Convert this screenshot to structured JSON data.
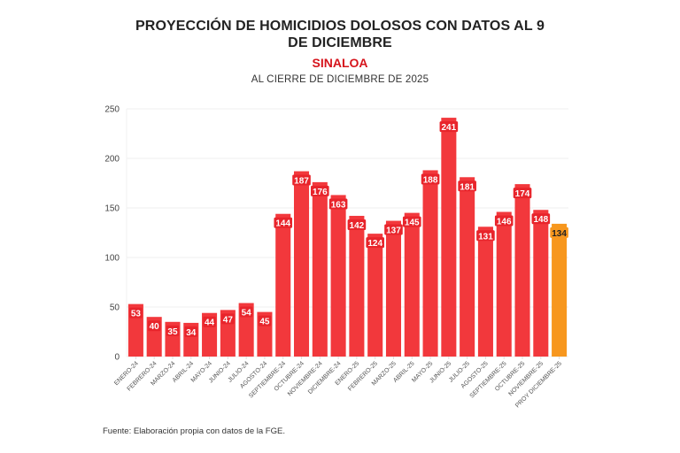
{
  "header": {
    "title": "PROYECCIÓN DE HOMICIDIOS DOLOSOS CON DATOS AL 9 DE DICIEMBRE",
    "subtitle": "SINALOA",
    "subsubtitle": "AL CIERRE DE DICIEMBRE DE 2025"
  },
  "footer": {
    "source": "Fuente: Elaboración propia con datos de la FGE."
  },
  "colors": {
    "bar": "#F2383C",
    "projection_bar": "#F7971E",
    "label_bg": "#E8242B",
    "label_text": "#ffffff",
    "projection_label_text": "#222222",
    "subtitle": "#D6141C"
  },
  "chart_data": {
    "type": "bar",
    "title": "PROYECCIÓN DE HOMICIDIOS DOLOSOS CON DATOS AL 9 DE DICIEMBRE",
    "subtitle": "SINALOA — AL CIERRE DE DICIEMBRE DE 2025",
    "xlabel": "",
    "ylabel": "",
    "ylim": [
      0,
      250
    ],
    "yticks": [
      0,
      50,
      100,
      150,
      200,
      250
    ],
    "grid": true,
    "legend": "none",
    "categories": [
      "ENERO-24",
      "FEBRERO-24",
      "MARZO-24",
      "ABRIL-24",
      "MAYO-24",
      "JUNIO-24",
      "JULIO-24",
      "AGOSTO-24",
      "SEPTIEMBRE-24",
      "OCTUBRE-24",
      "NOVIEMBRE-24",
      "DICIEMBRE-24",
      "ENERO-25",
      "FEBRERO-25",
      "MARZO-25",
      "ABRIL-25",
      "MAYO-25",
      "JUNIO-25",
      "JULIO-25",
      "AGOSTO-25",
      "SEPTIEMBRE-25",
      "OCTUBRE-25",
      "NOVIEMBRE-25",
      "PROY DICIEMBRE-25"
    ],
    "values": [
      53,
      40,
      35,
      34,
      44,
      47,
      54,
      45,
      144,
      187,
      176,
      163,
      142,
      124,
      137,
      145,
      188,
      241,
      181,
      131,
      146,
      174,
      148,
      134
    ],
    "highlight_index": 23,
    "highlight_note": "projection"
  }
}
